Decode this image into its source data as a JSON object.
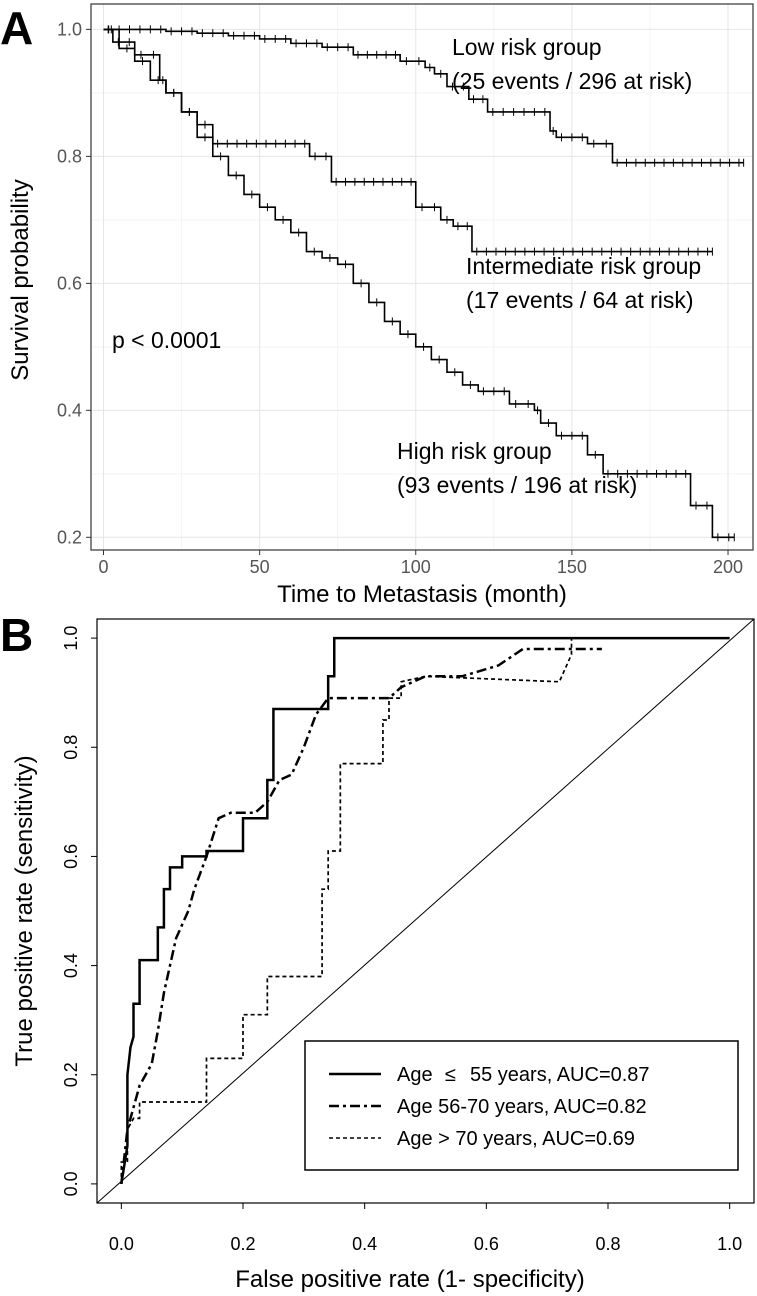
{
  "chart_data": [
    {
      "panel": "A",
      "type": "line",
      "subtype": "step",
      "xlabel": "Time to Metastasis (month)",
      "ylabel": "Survival probability",
      "xlim": [
        -4,
        208
      ],
      "ylim": [
        0.18,
        1.04
      ],
      "xticks": [
        0,
        50,
        100,
        150,
        200
      ],
      "xtick_labels": [
        "0",
        "50",
        "100",
        "150",
        "200"
      ],
      "yticks": [
        0.2,
        0.4,
        0.6,
        0.8,
        1.0
      ],
      "ytick_labels": [
        "0.2",
        "0.4",
        "0.6",
        "0.8",
        "1.0"
      ],
      "grid": true,
      "annotation": "p < 0.0001",
      "series": [
        {
          "name": "Low risk group",
          "label_lines": [
            "Low risk group",
            "(25 events / 296 at risk)"
          ],
          "x": [
            0,
            20,
            30,
            40,
            50,
            60,
            70,
            80,
            95,
            103,
            106,
            110,
            117,
            123,
            143,
            145,
            155,
            163,
            205
          ],
          "y": [
            1.0,
            0.997,
            0.994,
            0.99,
            0.985,
            0.978,
            0.972,
            0.96,
            0.95,
            0.94,
            0.93,
            0.91,
            0.89,
            0.87,
            0.84,
            0.83,
            0.82,
            0.79,
            0.79
          ]
        },
        {
          "name": "Intermediate risk group",
          "label_lines": [
            "Intermediate risk group",
            "(17 events / 64 at risk)"
          ],
          "x": [
            0,
            3,
            10,
            18,
            20,
            25,
            30,
            35,
            66,
            73,
            100,
            108,
            112,
            118,
            195
          ],
          "y": [
            1.0,
            0.98,
            0.96,
            0.92,
            0.9,
            0.87,
            0.85,
            0.82,
            0.8,
            0.76,
            0.72,
            0.7,
            0.69,
            0.65,
            0.65
          ]
        },
        {
          "name": "High risk group",
          "label_lines": [
            "High risk group",
            "(93 events / 196 at risk)"
          ],
          "x": [
            0,
            5,
            10,
            15,
            20,
            25,
            30,
            35,
            40,
            45,
            50,
            55,
            60,
            65,
            70,
            75,
            80,
            85,
            90,
            95,
            100,
            105,
            110,
            115,
            120,
            130,
            138,
            140,
            145,
            155,
            160,
            188,
            195,
            202
          ],
          "y": [
            1.0,
            0.97,
            0.95,
            0.92,
            0.9,
            0.87,
            0.83,
            0.8,
            0.77,
            0.74,
            0.72,
            0.7,
            0.68,
            0.65,
            0.64,
            0.63,
            0.6,
            0.57,
            0.54,
            0.52,
            0.5,
            0.48,
            0.46,
            0.44,
            0.43,
            0.41,
            0.4,
            0.38,
            0.36,
            0.33,
            0.3,
            0.25,
            0.2,
            0.2
          ]
        }
      ]
    },
    {
      "panel": "B",
      "type": "line",
      "subtype": "roc",
      "xlabel": "False positive rate (1- specificity)",
      "ylabel": "True positive rate (sensitivity)",
      "xlim": [
        -0.04,
        1.04
      ],
      "ylim": [
        -0.035,
        1.035
      ],
      "xticks": [
        0.0,
        0.2,
        0.4,
        0.6,
        0.8,
        1.0
      ],
      "xtick_labels": [
        "0.0",
        "0.2",
        "0.4",
        "0.6",
        "0.8",
        "1.0"
      ],
      "yticks": [
        0.0,
        0.2,
        0.4,
        0.6,
        0.8,
        1.0
      ],
      "ytick_labels": [
        "0.0",
        "0.2",
        "0.4",
        "0.6",
        "0.8",
        "1.0"
      ],
      "grid": false,
      "legend_position": "bottom-right",
      "series": [
        {
          "name": "Age ≤ 55 years, AUC=0.87",
          "legend_parts": [
            "Age",
            "≤",
            "55 years, AUC=0.87"
          ],
          "line_style": "solid",
          "x": [
            0.0,
            0.01,
            0.01,
            0.015,
            0.02,
            0.02,
            0.03,
            0.03,
            0.06,
            0.06,
            0.07,
            0.07,
            0.08,
            0.08,
            0.1,
            0.1,
            0.12,
            0.12,
            0.14,
            0.14,
            0.2,
            0.2,
            0.24,
            0.24,
            0.25,
            0.25,
            0.34,
            0.34,
            0.35,
            0.35,
            1.0
          ],
          "y": [
            0.0,
            0.07,
            0.2,
            0.25,
            0.27,
            0.33,
            0.33,
            0.41,
            0.41,
            0.47,
            0.47,
            0.54,
            0.54,
            0.58,
            0.58,
            0.6,
            0.6,
            0.6,
            0.6,
            0.61,
            0.61,
            0.67,
            0.67,
            0.74,
            0.74,
            0.87,
            0.87,
            0.93,
            0.93,
            1.0,
            1.0
          ]
        },
        {
          "name": "Age 56-70 years, AUC=0.82",
          "legend_parts": [
            "Age 56-70 years, AUC=0.82"
          ],
          "line_style": "dashdot",
          "x": [
            0.0,
            0.01,
            0.02,
            0.03,
            0.05,
            0.06,
            0.07,
            0.08,
            0.09,
            0.11,
            0.12,
            0.14,
            0.16,
            0.18,
            0.22,
            0.24,
            0.26,
            0.28,
            0.3,
            0.32,
            0.34,
            0.36,
            0.4,
            0.44,
            0.46,
            0.5,
            0.56,
            0.62,
            0.66,
            0.7,
            0.79
          ],
          "y": [
            0.0,
            0.1,
            0.14,
            0.18,
            0.22,
            0.28,
            0.35,
            0.4,
            0.45,
            0.5,
            0.54,
            0.6,
            0.67,
            0.68,
            0.68,
            0.7,
            0.74,
            0.75,
            0.8,
            0.86,
            0.89,
            0.89,
            0.89,
            0.89,
            0.91,
            0.93,
            0.93,
            0.95,
            0.98,
            0.98,
            0.98
          ]
        },
        {
          "name": "Age > 70 years, AUC=0.69",
          "legend_parts": [
            "Age > 70 years, AUC=0.69"
          ],
          "line_style": "dotted",
          "x": [
            0.0,
            0.0,
            0.01,
            0.01,
            0.02,
            0.03,
            0.03,
            0.14,
            0.14,
            0.2,
            0.2,
            0.24,
            0.24,
            0.33,
            0.33,
            0.34,
            0.34,
            0.36,
            0.36,
            0.43,
            0.43,
            0.44,
            0.44,
            0.46,
            0.46,
            0.5,
            0.72,
            0.74,
            0.74
          ],
          "y": [
            0.0,
            0.04,
            0.04,
            0.1,
            0.12,
            0.12,
            0.15,
            0.15,
            0.23,
            0.23,
            0.31,
            0.31,
            0.38,
            0.38,
            0.54,
            0.54,
            0.61,
            0.61,
            0.77,
            0.77,
            0.85,
            0.85,
            0.89,
            0.89,
            0.92,
            0.93,
            0.92,
            0.97,
            1.0
          ]
        }
      ]
    }
  ]
}
